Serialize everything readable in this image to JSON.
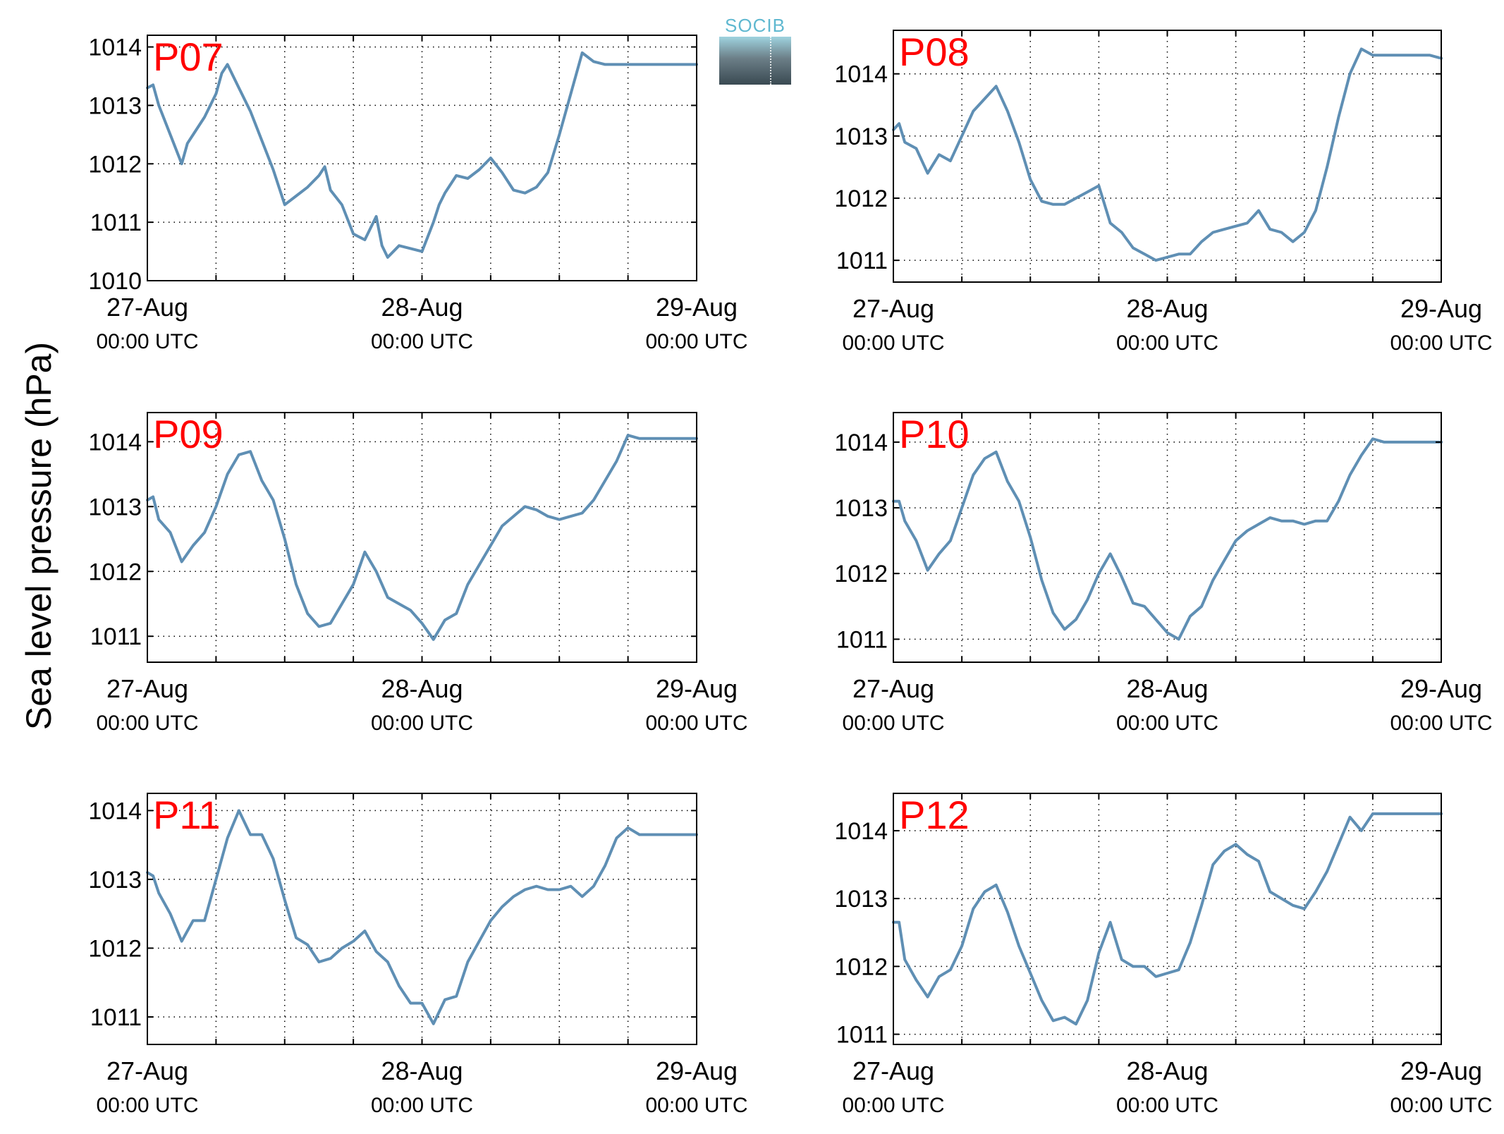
{
  "figure": {
    "ylabel": "Sea level pressure (hPa)",
    "logo_text": "SOCIB",
    "line_color": "#5f8fb4",
    "label_color": "#ff0000"
  },
  "chart_data": [
    {
      "type": "line",
      "title": "P07",
      "x_ticks": [
        {
          "line1": "27-Aug",
          "line2": "00:00 UTC"
        },
        {
          "line1": "28-Aug",
          "line2": "00:00 UTC"
        },
        {
          "line1": "29-Aug",
          "line2": "00:00 UTC"
        }
      ],
      "xlim": [
        0,
        48
      ],
      "ylim": [
        1010,
        1014.2
      ],
      "yticks": [
        1010,
        1011,
        1012,
        1013,
        1014
      ],
      "grid": true,
      "series": [
        {
          "x": [
            0,
            0.5,
            1,
            2,
            3,
            3.5,
            4,
            5,
            6,
            6.5,
            7,
            8,
            9,
            10,
            11,
            12,
            13,
            14,
            15,
            15.5,
            16,
            17,
            18,
            19,
            20,
            20.5,
            21,
            22,
            23,
            24,
            25,
            25.5,
            26,
            27,
            28,
            29,
            30,
            31,
            32,
            33,
            34,
            35,
            36,
            37,
            38,
            39,
            40,
            41,
            42,
            43,
            44,
            45,
            46,
            47,
            48
          ],
          "y": [
            1013.3,
            1013.35,
            1013.0,
            1012.5,
            1012.0,
            1012.35,
            1012.5,
            1012.8,
            1013.2,
            1013.55,
            1013.7,
            1013.3,
            1012.9,
            1012.4,
            1011.9,
            1011.3,
            1011.45,
            1011.6,
            1011.8,
            1011.95,
            1011.55,
            1011.3,
            1010.8,
            1010.7,
            1011.1,
            1010.6,
            1010.4,
            1010.6,
            1010.55,
            1010.5,
            1011.0,
            1011.3,
            1011.5,
            1011.8,
            1011.75,
            1011.9,
            1012.1,
            1011.85,
            1011.55,
            1011.5,
            1011.6,
            1011.85,
            1012.5,
            1013.2,
            1013.9,
            1013.75,
            1013.7,
            1013.7,
            1013.7,
            1013.7,
            1013.7,
            1013.7,
            1013.7,
            1013.7,
            1013.7
          ]
        }
      ]
    },
    {
      "type": "line",
      "title": "P08",
      "x_ticks": [
        {
          "line1": "27-Aug",
          "line2": "00:00 UTC"
        },
        {
          "line1": "28-Aug",
          "line2": "00:00 UTC"
        },
        {
          "line1": "29-Aug",
          "line2": "00:00 UTC"
        }
      ],
      "xlim": [
        0,
        48
      ],
      "ylim": [
        1010.65,
        1014.7
      ],
      "yticks": [
        1011,
        1012,
        1013,
        1014
      ],
      "grid": true,
      "series": [
        {
          "x": [
            0,
            0.5,
            1,
            2,
            3,
            4,
            5,
            6,
            7,
            8,
            9,
            10,
            11,
            12,
            13,
            14,
            15,
            16,
            17,
            18,
            19,
            20,
            21,
            22,
            23,
            24,
            25,
            26,
            27,
            28,
            29,
            30,
            31,
            32,
            33,
            34,
            35,
            36,
            37,
            38,
            39,
            40,
            41,
            42,
            43,
            44,
            45,
            46,
            47,
            48
          ],
          "y": [
            1013.1,
            1013.2,
            1012.9,
            1012.8,
            1012.4,
            1012.7,
            1012.6,
            1013.0,
            1013.4,
            1013.6,
            1013.8,
            1013.4,
            1012.9,
            1012.3,
            1011.95,
            1011.9,
            1011.9,
            1012.0,
            1012.1,
            1012.2,
            1011.6,
            1011.45,
            1011.2,
            1011.1,
            1011.0,
            1011.05,
            1011.1,
            1011.1,
            1011.3,
            1011.45,
            1011.5,
            1011.55,
            1011.6,
            1011.8,
            1011.5,
            1011.45,
            1011.3,
            1011.45,
            1011.8,
            1012.5,
            1013.3,
            1014.0,
            1014.4,
            1014.3,
            1014.3,
            1014.3,
            1014.3,
            1014.3,
            1014.3,
            1014.25
          ]
        }
      ]
    },
    {
      "type": "line",
      "title": "P09",
      "x_ticks": [
        {
          "line1": "27-Aug",
          "line2": "00:00 UTC"
        },
        {
          "line1": "28-Aug",
          "line2": "00:00 UTC"
        },
        {
          "line1": "29-Aug",
          "line2": "00:00 UTC"
        }
      ],
      "xlim": [
        0,
        48
      ],
      "ylim": [
        1010.6,
        1014.45
      ],
      "yticks": [
        1011,
        1012,
        1013,
        1014
      ],
      "grid": true,
      "series": [
        {
          "x": [
            0,
            0.5,
            1,
            2,
            3,
            4,
            5,
            6,
            7,
            8,
            9,
            10,
            11,
            12,
            13,
            14,
            15,
            16,
            17,
            18,
            19,
            20,
            21,
            22,
            23,
            24,
            25,
            26,
            27,
            28,
            29,
            30,
            31,
            32,
            33,
            34,
            35,
            36,
            37,
            38,
            39,
            40,
            41,
            42,
            43,
            44,
            45,
            46,
            47,
            48
          ],
          "y": [
            1013.1,
            1013.15,
            1012.8,
            1012.6,
            1012.15,
            1012.4,
            1012.6,
            1013.0,
            1013.5,
            1013.8,
            1013.85,
            1013.4,
            1013.1,
            1012.5,
            1011.8,
            1011.35,
            1011.15,
            1011.2,
            1011.5,
            1011.8,
            1012.3,
            1012.0,
            1011.6,
            1011.5,
            1011.4,
            1011.2,
            1010.95,
            1011.25,
            1011.35,
            1011.8,
            1012.1,
            1012.4,
            1012.7,
            1012.85,
            1013.0,
            1012.95,
            1012.85,
            1012.8,
            1012.85,
            1012.9,
            1013.1,
            1013.4,
            1013.7,
            1014.1,
            1014.05,
            1014.05,
            1014.05,
            1014.05,
            1014.05,
            1014.05
          ]
        }
      ]
    },
    {
      "type": "line",
      "title": "P10",
      "x_ticks": [
        {
          "line1": "27-Aug",
          "line2": "00:00 UTC"
        },
        {
          "line1": "28-Aug",
          "line2": "00:00 UTC"
        },
        {
          "line1": "29-Aug",
          "line2": "00:00 UTC"
        }
      ],
      "xlim": [
        0,
        48
      ],
      "ylim": [
        1010.65,
        1014.45
      ],
      "yticks": [
        1011,
        1012,
        1013,
        1014
      ],
      "grid": true,
      "series": [
        {
          "x": [
            0,
            0.5,
            1,
            2,
            3,
            4,
            5,
            6,
            7,
            8,
            9,
            10,
            11,
            12,
            13,
            14,
            15,
            16,
            17,
            18,
            19,
            20,
            21,
            22,
            23,
            24,
            25,
            26,
            27,
            28,
            29,
            30,
            31,
            32,
            33,
            34,
            35,
            36,
            37,
            38,
            39,
            40,
            41,
            42,
            43,
            44,
            45,
            46,
            47,
            48
          ],
          "y": [
            1013.1,
            1013.1,
            1012.8,
            1012.5,
            1012.05,
            1012.3,
            1012.5,
            1013.0,
            1013.5,
            1013.75,
            1013.85,
            1013.4,
            1013.1,
            1012.55,
            1011.9,
            1011.4,
            1011.15,
            1011.3,
            1011.6,
            1012.0,
            1012.3,
            1011.95,
            1011.55,
            1011.5,
            1011.3,
            1011.1,
            1011.0,
            1011.35,
            1011.5,
            1011.9,
            1012.2,
            1012.5,
            1012.65,
            1012.75,
            1012.85,
            1012.8,
            1012.8,
            1012.75,
            1012.8,
            1012.8,
            1013.1,
            1013.5,
            1013.8,
            1014.05,
            1014.0,
            1014.0,
            1014.0,
            1014.0,
            1014.0,
            1014.0
          ]
        }
      ]
    },
    {
      "type": "line",
      "title": "P11",
      "x_ticks": [
        {
          "line1": "27-Aug",
          "line2": "00:00 UTC"
        },
        {
          "line1": "28-Aug",
          "line2": "00:00 UTC"
        },
        {
          "line1": "29-Aug",
          "line2": "00:00 UTC"
        }
      ],
      "xlim": [
        0,
        48
      ],
      "ylim": [
        1010.6,
        1014.25
      ],
      "yticks": [
        1011,
        1012,
        1013,
        1014
      ],
      "grid": true,
      "series": [
        {
          "x": [
            0,
            0.5,
            1,
            2,
            3,
            4,
            5,
            6,
            7,
            8,
            9,
            10,
            11,
            12,
            13,
            14,
            15,
            16,
            17,
            18,
            19,
            20,
            21,
            22,
            23,
            24,
            25,
            26,
            27,
            28,
            29,
            30,
            31,
            32,
            33,
            34,
            35,
            36,
            37,
            38,
            39,
            40,
            41,
            42,
            43,
            44,
            45,
            46,
            47,
            48
          ],
          "y": [
            1013.1,
            1013.05,
            1012.8,
            1012.5,
            1012.1,
            1012.4,
            1012.4,
            1013.0,
            1013.6,
            1014.0,
            1013.65,
            1013.65,
            1013.3,
            1012.7,
            1012.15,
            1012.05,
            1011.8,
            1011.85,
            1012.0,
            1012.1,
            1012.25,
            1011.95,
            1011.8,
            1011.45,
            1011.2,
            1011.2,
            1010.9,
            1011.25,
            1011.3,
            1011.8,
            1012.1,
            1012.4,
            1012.6,
            1012.75,
            1012.85,
            1012.9,
            1012.85,
            1012.85,
            1012.9,
            1012.75,
            1012.9,
            1013.2,
            1013.6,
            1013.75,
            1013.65,
            1013.65,
            1013.65,
            1013.65,
            1013.65,
            1013.65
          ]
        }
      ]
    },
    {
      "type": "line",
      "title": "P12",
      "x_ticks": [
        {
          "line1": "27-Aug",
          "line2": "00:00 UTC"
        },
        {
          "line1": "28-Aug",
          "line2": "00:00 UTC"
        },
        {
          "line1": "29-Aug",
          "line2": "00:00 UTC"
        }
      ],
      "xlim": [
        0,
        48
      ],
      "ylim": [
        1010.85,
        1014.55
      ],
      "yticks": [
        1011,
        1012,
        1013,
        1014
      ],
      "grid": true,
      "series": [
        {
          "x": [
            0,
            0.5,
            1,
            2,
            3,
            4,
            5,
            6,
            7,
            8,
            9,
            10,
            11,
            12,
            13,
            14,
            15,
            16,
            17,
            18,
            19,
            20,
            21,
            22,
            23,
            24,
            25,
            26,
            27,
            28,
            29,
            30,
            31,
            32,
            33,
            34,
            35,
            36,
            37,
            38,
            39,
            40,
            41,
            42,
            43,
            44,
            45,
            46,
            47,
            48
          ],
          "y": [
            1012.65,
            1012.65,
            1012.1,
            1011.8,
            1011.55,
            1011.85,
            1011.95,
            1012.3,
            1012.85,
            1013.1,
            1013.2,
            1012.8,
            1012.3,
            1011.9,
            1011.5,
            1011.2,
            1011.25,
            1011.15,
            1011.5,
            1012.2,
            1012.65,
            1012.1,
            1012.0,
            1012.0,
            1011.85,
            1011.9,
            1011.95,
            1012.35,
            1012.9,
            1013.5,
            1013.7,
            1013.8,
            1013.65,
            1013.55,
            1013.1,
            1013.0,
            1012.9,
            1012.85,
            1013.1,
            1013.4,
            1013.8,
            1014.2,
            1014.0,
            1014.25,
            1014.25,
            1014.25,
            1014.25,
            1014.25,
            1014.25,
            1014.25
          ]
        }
      ]
    }
  ]
}
